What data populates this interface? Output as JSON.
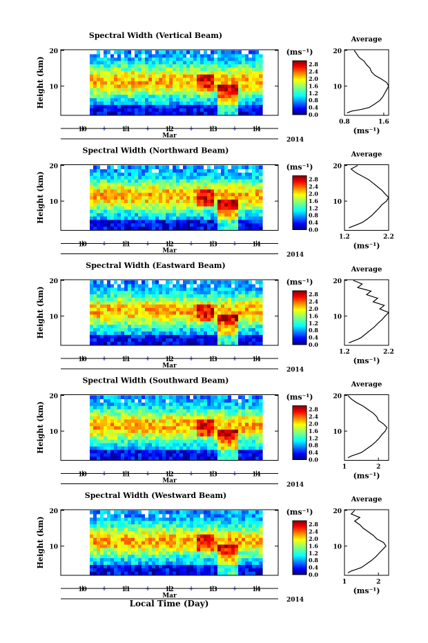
{
  "figure": {
    "xlabel": "Local Time (Day)",
    "month": "Mar",
    "year": "2014",
    "units": "(ms⁻¹)",
    "avg_title": "Average",
    "avg_xlabel": "(ms⁻¹)",
    "ylabel": "Height (km)"
  },
  "chart_data": [
    {
      "type": "heatmap",
      "title": "Spectral Width (Vertical Beam)",
      "ylabel": "Height (km)",
      "xlabel": "Mar",
      "x_ticks": [
        "10",
        "11",
        "12",
        "13",
        "14"
      ],
      "y_ticks": [
        "10",
        "20"
      ],
      "ylim": [
        2,
        20
      ],
      "colorbar": {
        "label": "(ms⁻¹)",
        "ticks": [
          "0.0",
          "0.4",
          "0.8",
          "1.2",
          "1.6",
          "2.0",
          "2.4",
          "2.8"
        ],
        "range": [
          0,
          3.0
        ]
      },
      "average_profile": {
        "title": "Average",
        "xlabel": "(ms⁻¹)",
        "x_ticks": [
          "0.8",
          "1.6"
        ],
        "xlim": [
          0.8,
          1.7
        ],
        "height": [
          2.5,
          3,
          3.5,
          4,
          5,
          6,
          7,
          8,
          9,
          10,
          11,
          12,
          13,
          14,
          15,
          16,
          17,
          18,
          19,
          20
        ],
        "value": [
          0.85,
          0.95,
          1.15,
          1.3,
          1.42,
          1.52,
          1.58,
          1.62,
          1.66,
          1.7,
          1.66,
          1.55,
          1.42,
          1.35,
          1.32,
          1.25,
          1.2,
          1.1,
          1.05,
          1.0
        ]
      }
    },
    {
      "type": "heatmap",
      "title": "Spectral Width (Northward Beam)",
      "ylabel": "Height (km)",
      "xlabel": "Mar",
      "x_ticks": [
        "10",
        "11",
        "12",
        "13",
        "14"
      ],
      "y_ticks": [
        "10",
        "20"
      ],
      "ylim": [
        2,
        20
      ],
      "colorbar": {
        "label": "(ms⁻¹)",
        "ticks": [
          "0.0",
          "0.4",
          "0.8",
          "1.2",
          "1.6",
          "2.0",
          "2.4",
          "2.8"
        ],
        "range": [
          0,
          3.0
        ]
      },
      "average_profile": {
        "title": "Average",
        "xlabel": "(ms⁻¹)",
        "x_ticks": [
          "1.2",
          "2.2"
        ],
        "xlim": [
          1.2,
          2.2
        ],
        "height": [
          2.5,
          3,
          3.5,
          4,
          5,
          6,
          7,
          8,
          9,
          10,
          11,
          12,
          13,
          14,
          15,
          16,
          17,
          18,
          19,
          20
        ],
        "value": [
          1.3,
          1.4,
          1.5,
          1.6,
          1.72,
          1.82,
          1.9,
          1.98,
          2.05,
          2.15,
          2.2,
          2.12,
          2.05,
          1.95,
          1.85,
          1.75,
          1.6,
          1.45,
          1.35,
          1.5
        ]
      }
    },
    {
      "type": "heatmap",
      "title": "Spectral Width (Eastward Beam)",
      "ylabel": "Height (km)",
      "xlabel": "Mar",
      "x_ticks": [
        "10",
        "11",
        "12",
        "13",
        "14"
      ],
      "y_ticks": [
        "10",
        "20"
      ],
      "ylim": [
        2,
        20
      ],
      "colorbar": {
        "label": "(ms⁻¹)",
        "ticks": [
          "0.0",
          "0.4",
          "0.8",
          "1.2",
          "1.6",
          "2.0",
          "2.4",
          "2.8"
        ],
        "range": [
          0,
          3.0
        ]
      },
      "average_profile": {
        "title": "Average",
        "xlabel": "(ms⁻¹)",
        "x_ticks": [
          "1.2",
          "2.2"
        ],
        "xlim": [
          1.2,
          2.2
        ],
        "height": [
          2.5,
          3,
          3.5,
          4,
          5,
          6,
          7,
          8,
          9,
          10,
          11,
          12,
          13,
          14,
          15,
          16,
          17,
          18,
          19,
          20
        ],
        "value": [
          1.3,
          1.4,
          1.5,
          1.58,
          1.68,
          1.78,
          1.88,
          1.96,
          2.05,
          2.12,
          2.2,
          2.0,
          2.1,
          1.85,
          1.95,
          1.7,
          1.8,
          1.5,
          1.6,
          1.4
        ]
      }
    },
    {
      "type": "heatmap",
      "title": "Spectral Width (Southward Beam)",
      "ylabel": "Height (km)",
      "xlabel": "Mar",
      "x_ticks": [
        "10",
        "11",
        "12",
        "13",
        "14"
      ],
      "y_ticks": [
        "10",
        "20"
      ],
      "ylim": [
        2,
        20
      ],
      "colorbar": {
        "label": "(ms⁻¹)",
        "ticks": [
          "0.0",
          "0.4",
          "0.8",
          "1.2",
          "1.6",
          "2.0",
          "2.4",
          "2.8"
        ],
        "range": [
          0,
          3.0
        ]
      },
      "average_profile": {
        "title": "Average",
        "xlabel": "(ms⁻¹)",
        "x_ticks": [
          "1",
          "2"
        ],
        "xlim": [
          1.0,
          2.3
        ],
        "height": [
          2.5,
          3,
          3.5,
          4,
          5,
          6,
          7,
          8,
          9,
          10,
          11,
          12,
          13,
          14,
          15,
          16,
          17,
          18,
          19,
          20
        ],
        "value": [
          1.1,
          1.2,
          1.35,
          1.5,
          1.65,
          1.8,
          1.92,
          2.02,
          2.1,
          2.2,
          2.25,
          2.15,
          2.0,
          1.95,
          1.85,
          1.7,
          1.55,
          1.35,
          1.2,
          1.1
        ]
      }
    },
    {
      "type": "heatmap",
      "title": "Spectral Width (Westward Beam)",
      "ylabel": "Height (km)",
      "xlabel": "Mar",
      "x_ticks": [
        "10",
        "11",
        "12",
        "13",
        "14"
      ],
      "y_ticks": [
        "10",
        "20"
      ],
      "ylim": [
        2,
        20
      ],
      "colorbar": {
        "label": "(ms⁻¹)",
        "ticks": [
          "0.0",
          "0.4",
          "0.8",
          "1.2",
          "1.6",
          "2.0",
          "2.4",
          "2.8"
        ],
        "range": [
          0,
          3.0
        ]
      },
      "average_profile": {
        "title": "Average",
        "xlabel": "(ms⁻¹)",
        "x_ticks": [
          "1",
          "2"
        ],
        "xlim": [
          1.0,
          2.3
        ],
        "height": [
          2.5,
          3,
          3.5,
          4,
          5,
          6,
          7,
          8,
          9,
          10,
          11,
          12,
          13,
          14,
          15,
          16,
          17,
          18,
          19,
          20
        ],
        "value": [
          1.1,
          1.2,
          1.35,
          1.5,
          1.65,
          1.8,
          1.92,
          2.02,
          2.12,
          2.22,
          2.15,
          1.95,
          1.85,
          1.7,
          1.55,
          1.45,
          1.3,
          1.45,
          1.2,
          1.3
        ]
      }
    }
  ]
}
